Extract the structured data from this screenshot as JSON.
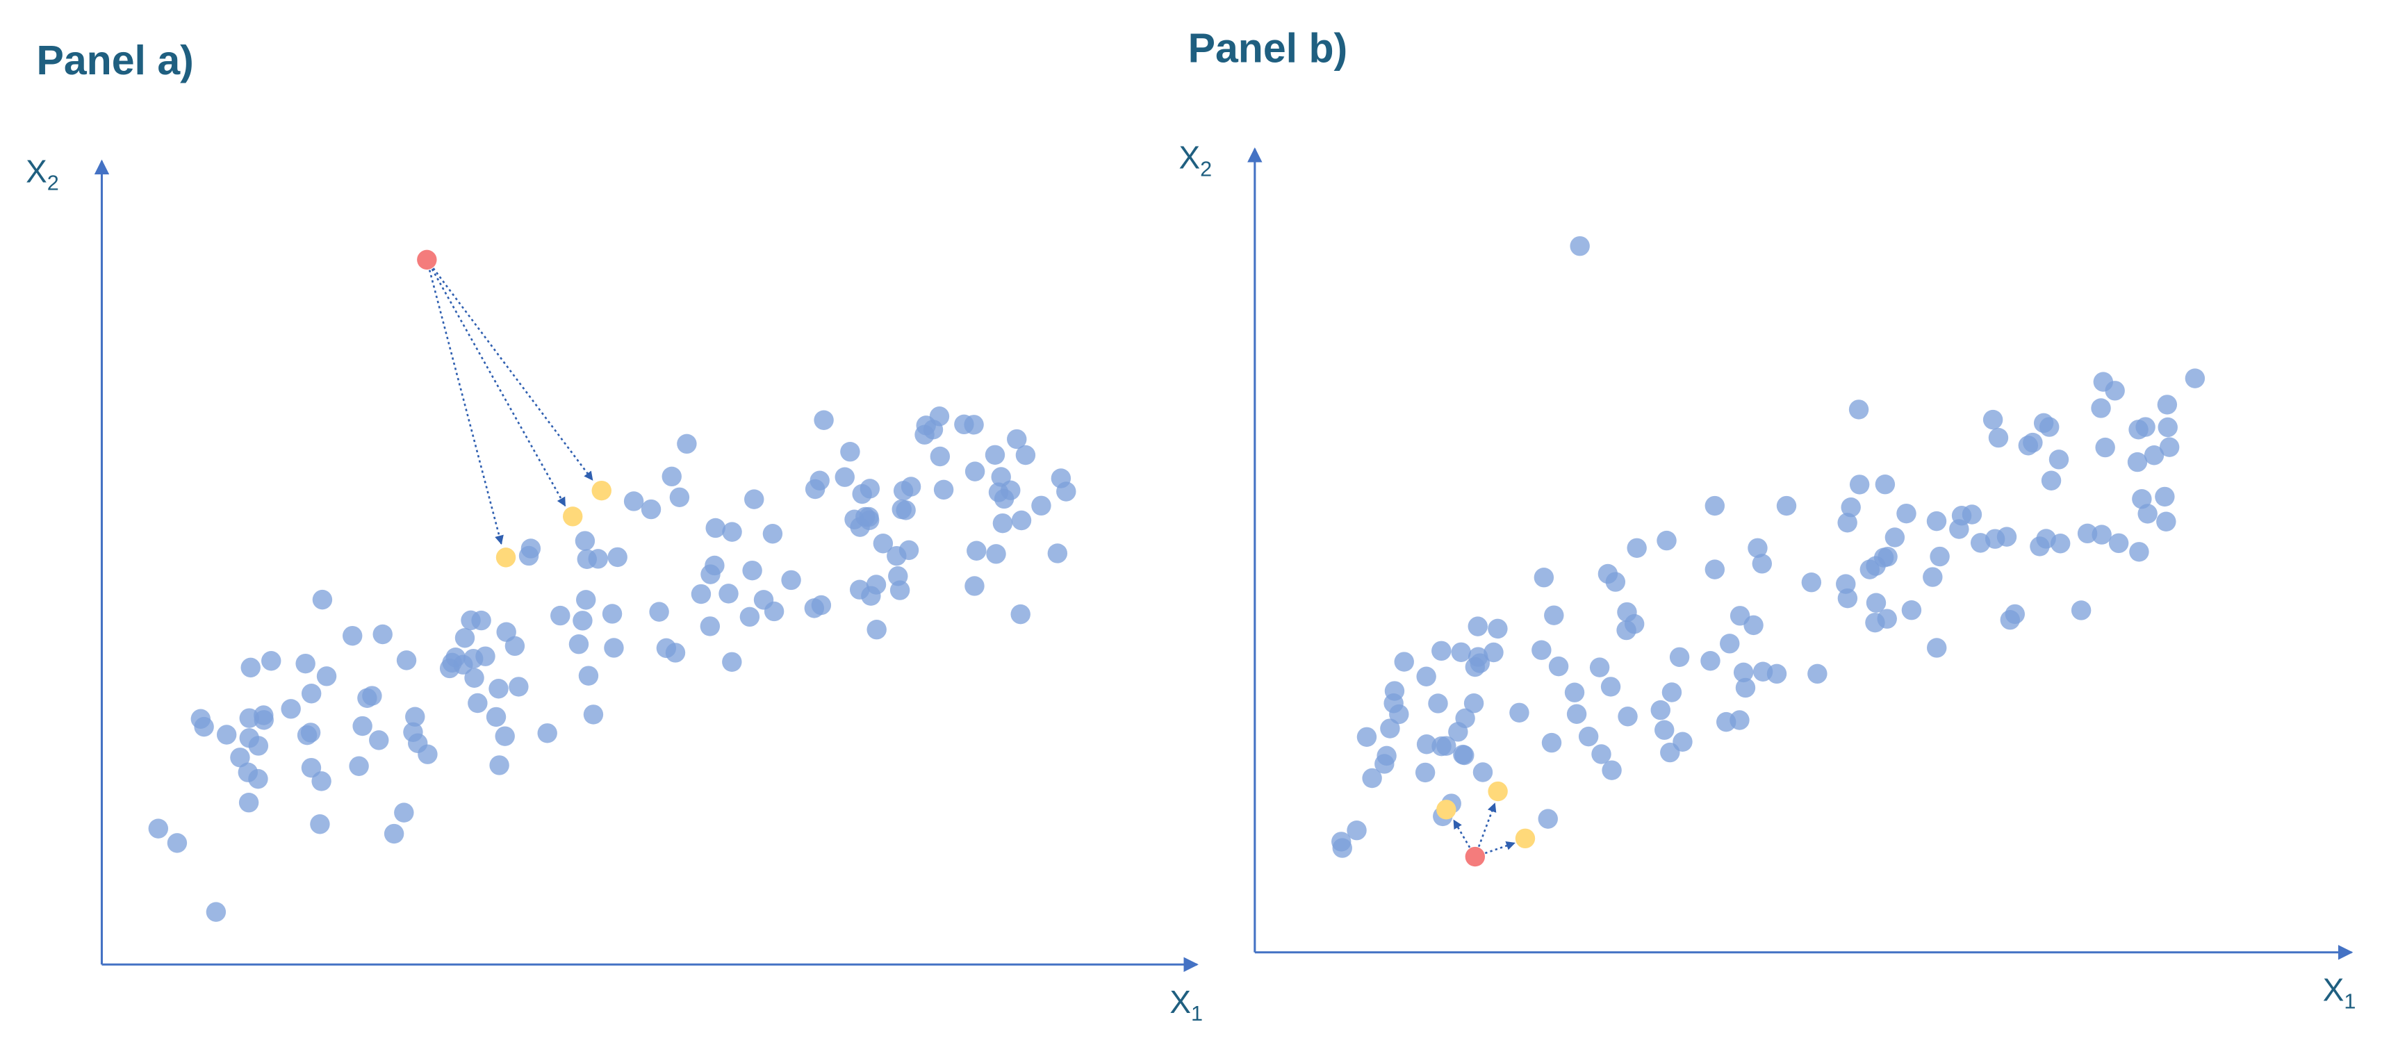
{
  "panel_a": {
    "title": "Panel a)",
    "y_axis_label": {
      "letter": "X",
      "subscript": "2"
    },
    "x_axis_label": {
      "letter": "X",
      "subscript": "1"
    }
  },
  "panel_b": {
    "title": "Panel b)",
    "y_axis_label": {
      "letter": "X",
      "subscript": "2"
    },
    "x_axis_label": {
      "letter": "X",
      "subscript": "1"
    }
  }
}
